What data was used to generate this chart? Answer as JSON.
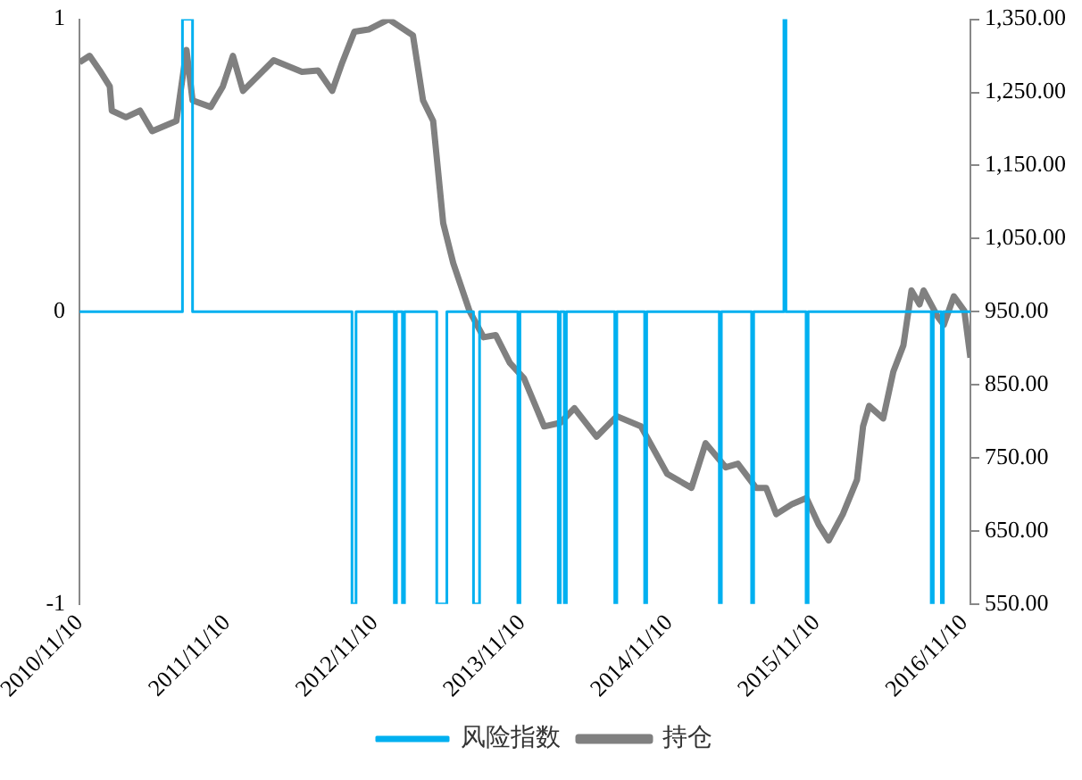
{
  "chart_data": {
    "type": "line",
    "legend": "bottom",
    "grid": false,
    "marker": "none",
    "xlim": [
      "2010-11-10",
      "2016-11-25"
    ],
    "xticks": [
      {
        "value": "2010-11-10",
        "label": "2010/11/10"
      },
      {
        "value": "2011-11-10",
        "label": "2011/11/10"
      },
      {
        "value": "2012-11-10",
        "label": "2012/11/10"
      },
      {
        "value": "2013-11-10",
        "label": "2013/11/10"
      },
      {
        "value": "2014-11-10",
        "label": "2014/11/10"
      },
      {
        "value": "2015-11-10",
        "label": "2015/11/10"
      },
      {
        "value": "2016-11-10",
        "label": "2016/11/10"
      }
    ],
    "ylim": [
      -1,
      1
    ],
    "yticks": [
      -1,
      0,
      1
    ],
    "y2lim": [
      550,
      1350
    ],
    "y2ticks": [
      {
        "value": 550,
        "label": "550.00"
      },
      {
        "value": 650,
        "label": "650.00"
      },
      {
        "value": 750,
        "label": "750.00"
      },
      {
        "value": 850,
        "label": "850.00"
      },
      {
        "value": 950,
        "label": "950.00"
      },
      {
        "value": 1050,
        "label": "1,050.00"
      },
      {
        "value": 1150,
        "label": "1,150.00"
      },
      {
        "value": 1250,
        "label": "1,250.00"
      },
      {
        "value": 1350,
        "label": "1,350.00"
      }
    ],
    "series": [
      {
        "name": "风险指数",
        "type": "step",
        "color": "#00b0f0",
        "x": [
          "2010-11-10",
          "2011-07-23",
          "2011-08-17",
          "2012-09-15",
          "2012-09-25",
          "2012-12-29",
          "2013-01-03",
          "2013-01-18",
          "2013-01-23",
          "2013-04-13",
          "2013-05-08",
          "2013-07-13",
          "2013-07-28",
          "2013-10-31",
          "2013-11-05",
          "2014-02-08",
          "2014-02-13",
          "2014-02-23",
          "2014-02-28",
          "2014-06-28",
          "2014-07-03",
          "2014-09-10",
          "2014-09-15",
          "2015-03-14",
          "2015-03-19",
          "2015-06-02",
          "2015-06-07",
          "2015-08-21",
          "2015-08-26",
          "2015-10-15",
          "2015-10-20",
          "2016-08-20",
          "2016-08-25",
          "2016-09-14",
          "2016-09-19",
          "2016-11-25"
        ],
        "values": [
          0,
          1,
          0,
          -1,
          0,
          -1,
          0,
          -1,
          0,
          -1,
          0,
          -1,
          0,
          -1,
          0,
          -1,
          0,
          -1,
          0,
          -1,
          0,
          -1,
          0,
          -1,
          0,
          -1,
          0,
          1,
          0,
          -1,
          0,
          -1,
          0,
          -1,
          0,
          0
        ]
      },
      {
        "name": "持仓",
        "type": "line",
        "axis": "y2",
        "color": "#808080",
        "x": [
          "2010-11-10",
          "2010-12-05",
          "2010-12-30",
          "2011-01-24",
          "2011-01-29",
          "2011-03-05",
          "2011-04-09",
          "2011-05-09",
          "2011-07-08",
          "2011-08-02",
          "2011-08-17",
          "2011-10-01",
          "2011-10-31",
          "2011-11-25",
          "2011-12-20",
          "2012-03-05",
          "2012-05-14",
          "2012-06-23",
          "2012-07-28",
          "2012-08-22",
          "2012-09-21",
          "2012-10-26",
          "2012-12-15",
          "2013-02-13",
          "2013-03-10",
          "2013-04-04",
          "2013-04-29",
          "2013-05-24",
          "2013-07-03",
          "2013-08-07",
          "2013-09-06",
          "2013-10-11",
          "2013-11-15",
          "2014-01-04",
          "2014-02-13",
          "2014-03-20",
          "2014-05-14",
          "2014-07-03",
          "2014-09-01",
          "2014-11-05",
          "2015-01-04",
          "2015-02-08",
          "2015-03-30",
          "2015-04-29",
          "2015-06-13",
          "2015-07-08",
          "2015-08-02",
          "2015-09-11",
          "2015-10-16",
          "2015-11-15",
          "2015-12-10",
          "2016-01-14",
          "2016-02-18",
          "2016-03-04",
          "2016-03-19",
          "2016-04-23",
          "2016-05-18",
          "2016-06-12",
          "2016-07-02",
          "2016-07-22",
          "2016-08-01",
          "2016-09-05",
          "2016-09-20",
          "2016-10-15",
          "2016-11-10",
          "2016-11-25"
        ],
        "values": [
          1291,
          1300,
          1280,
          1258,
          1225,
          1216,
          1225,
          1197,
          1211,
          1308,
          1239,
          1230,
          1258,
          1300,
          1252,
          1294,
          1278,
          1280,
          1252,
          1291,
          1333,
          1336,
          1350,
          1328,
          1239,
          1211,
          1071,
          1016,
          951,
          915,
          918,
          880,
          859,
          793,
          798,
          818,
          779,
          807,
          793,
          728,
          709,
          770,
          737,
          742,
          709,
          709,
          673,
          687,
          695,
          659,
          637,
          673,
          720,
          793,
          821,
          804,
          868,
          904,
          979,
          960,
          979,
          943,
          932,
          971,
          951,
          887
        ]
      }
    ]
  }
}
